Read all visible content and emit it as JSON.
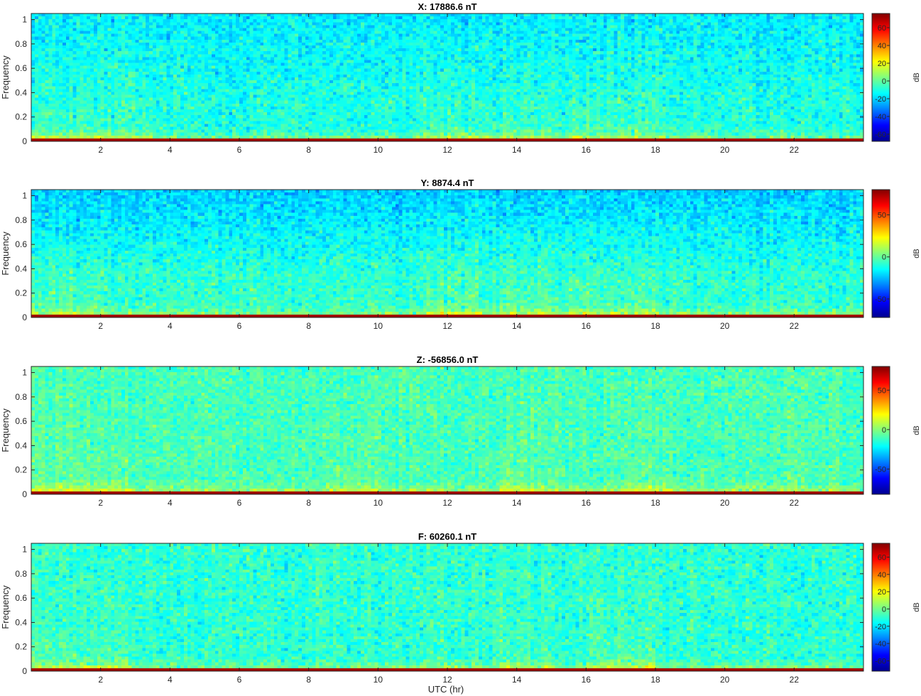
{
  "figure": {
    "xlabel": "UTC (hr)"
  },
  "colormap": "jet",
  "chart_data": [
    {
      "type": "heatmap",
      "title": "X: 17886.6 nT",
      "xlabel": "",
      "ylabel": "Frequency",
      "xlim": [
        0,
        24
      ],
      "ylim": [
        0,
        1.05
      ],
      "x_ticks": [
        2,
        4,
        6,
        8,
        10,
        12,
        14,
        16,
        18,
        20,
        22
      ],
      "y_ticks": [
        0,
        0.2,
        0.4,
        0.6,
        0.8,
        1
      ],
      "y_tick_labels": [
        "0",
        "0.2",
        "0.4",
        "0.6",
        "0.8",
        "1"
      ],
      "colorbar": {
        "label": "dB",
        "clim": [
          -68,
          76
        ],
        "ticks": [
          -60,
          -40,
          -20,
          0,
          20,
          40,
          60
        ]
      },
      "background_db": -10,
      "upper_band_db": -16,
      "low_freq_band_db": 40,
      "dc_line_db": 70,
      "enhanced_intervals_hr": [
        [
          0,
          3.5
        ],
        [
          11.3,
          13.2
        ],
        [
          13.5,
          15
        ],
        [
          15.5,
          18
        ]
      ]
    },
    {
      "type": "heatmap",
      "title": "Y: 8874.4 nT",
      "xlabel": "",
      "ylabel": "Frequency",
      "xlim": [
        0,
        24
      ],
      "ylim": [
        0,
        1.05
      ],
      "x_ticks": [
        2,
        4,
        6,
        8,
        10,
        12,
        14,
        16,
        18,
        20,
        22
      ],
      "y_ticks": [
        0,
        0.2,
        0.4,
        0.6,
        0.8,
        1
      ],
      "y_tick_labels": [
        "0",
        "0.2",
        "0.4",
        "0.6",
        "0.8",
        "1"
      ],
      "colorbar": {
        "label": "dB",
        "clim": [
          -72,
          80
        ],
        "ticks": [
          -50,
          0,
          50
        ]
      },
      "background_db": -8,
      "upper_band_db": -22,
      "low_freq_band_db": 42,
      "dc_line_db": 75,
      "enhanced_intervals_hr": [
        [
          0,
          2
        ],
        [
          11.3,
          13
        ],
        [
          13.5,
          15
        ],
        [
          15.5,
          18
        ]
      ]
    },
    {
      "type": "heatmap",
      "title": "Z: -56856.0 nT",
      "xlabel": "",
      "ylabel": "Frequency",
      "xlim": [
        0,
        24
      ],
      "ylim": [
        0,
        1.05
      ],
      "x_ticks": [
        2,
        4,
        6,
        8,
        10,
        12,
        14,
        16,
        18,
        20,
        22
      ],
      "y_ticks": [
        0,
        0.2,
        0.4,
        0.6,
        0.8,
        1
      ],
      "y_tick_labels": [
        "0",
        "0.2",
        "0.4",
        "0.6",
        "0.8",
        "1"
      ],
      "colorbar": {
        "label": "dB",
        "clim": [
          -82,
          80
        ],
        "ticks": [
          -50,
          0,
          50
        ]
      },
      "background_db": -10,
      "upper_band_db": -10,
      "low_freq_band_db": 45,
      "dc_line_db": 75,
      "enhanced_intervals_hr": [
        [
          0,
          3
        ],
        [
          8.5,
          10
        ],
        [
          13.5,
          15
        ],
        [
          17,
          18.5
        ]
      ]
    },
    {
      "type": "heatmap",
      "title": "F: 60260.1 nT",
      "xlabel": "UTC (hr)",
      "ylabel": "Frequency",
      "xlim": [
        0,
        24
      ],
      "ylim": [
        0,
        1.05
      ],
      "x_ticks": [
        2,
        4,
        6,
        8,
        10,
        12,
        14,
        16,
        18,
        20,
        22
      ],
      "y_ticks": [
        0,
        0.2,
        0.4,
        0.6,
        0.8,
        1
      ],
      "y_tick_labels": [
        "0",
        "0.2",
        "0.4",
        "0.6",
        "0.8",
        "1"
      ],
      "colorbar": {
        "label": "dB",
        "clim": [
          -72,
          76
        ],
        "ticks": [
          -60,
          -40,
          -20,
          0,
          20,
          40,
          60
        ]
      },
      "background_db": -10,
      "upper_band_db": -10,
      "low_freq_band_db": 40,
      "dc_line_db": 70,
      "enhanced_intervals_hr": [
        [
          0,
          3
        ],
        [
          13.5,
          15
        ],
        [
          16,
          18
        ]
      ]
    }
  ]
}
